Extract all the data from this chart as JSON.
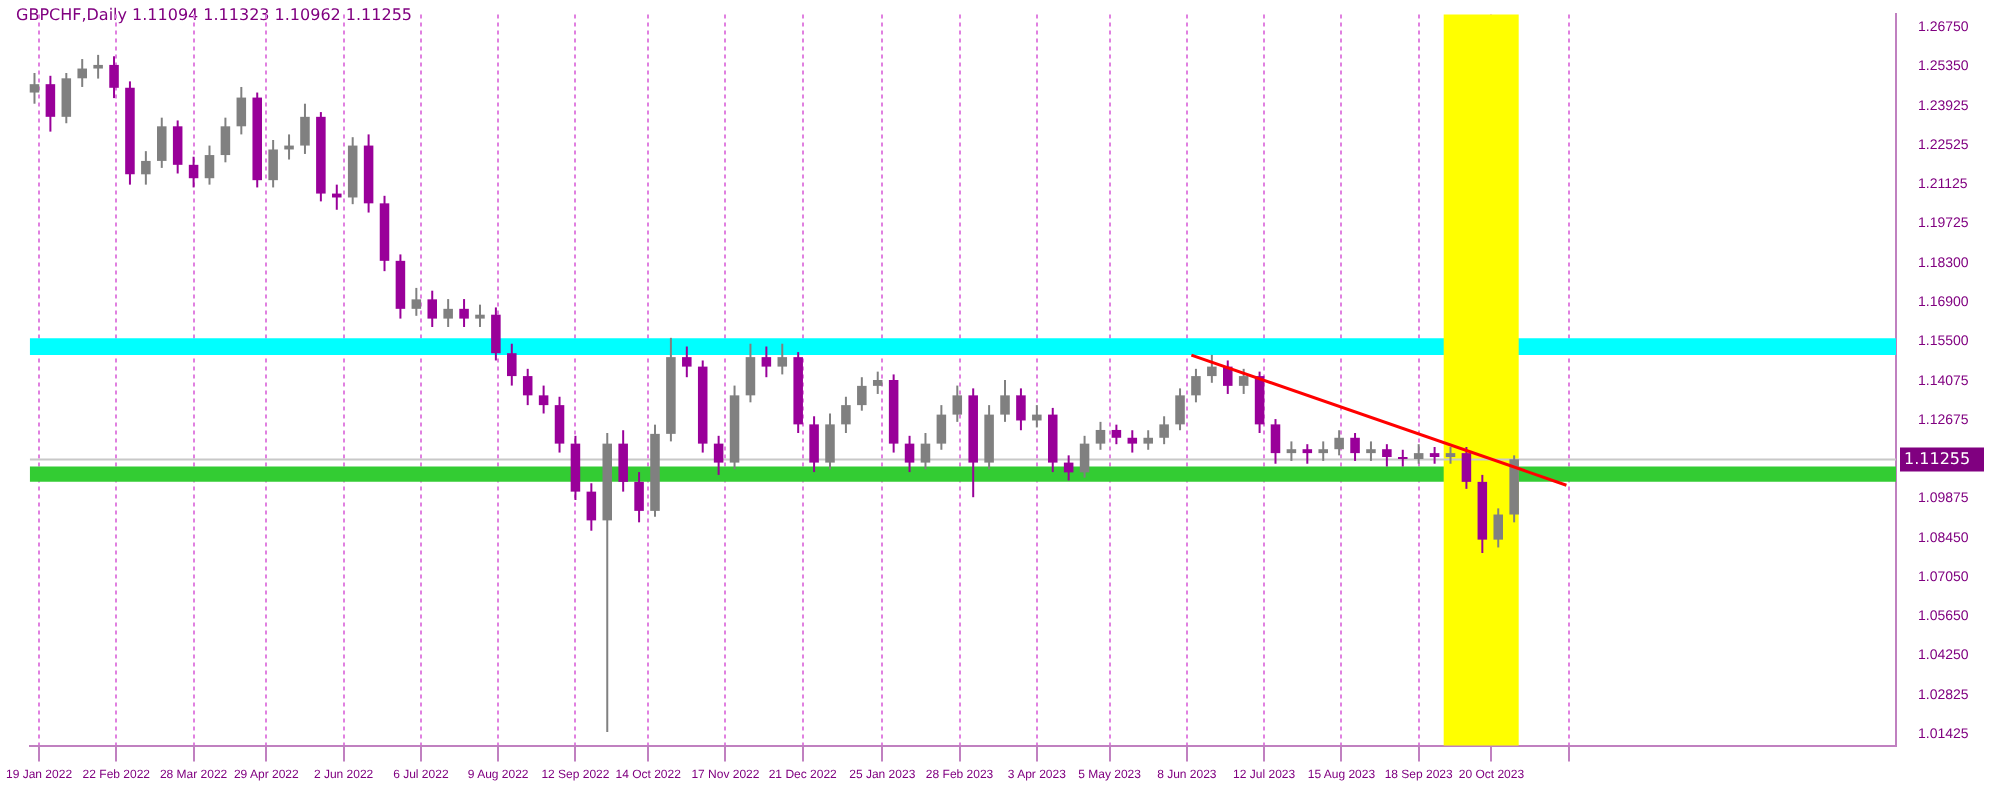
{
  "chart_data": {
    "type": "candlestick",
    "title": "GBPCHF,Daily  1.11094 1.11323 1.10962 1.11255",
    "x": [
      "2022-01-17",
      "2022-01-24",
      "2022-01-31",
      "2022-02-07",
      "2022-02-14",
      "2022-02-21",
      "2022-02-28",
      "2022-03-07",
      "2022-03-14",
      "2022-03-21",
      "2022-03-28",
      "2022-04-04",
      "2022-04-11",
      "2022-04-18",
      "2022-04-25",
      "2022-05-02",
      "2022-05-09",
      "2022-05-16",
      "2022-05-23",
      "2022-05-30",
      "2022-06-06",
      "2022-06-13",
      "2022-06-20",
      "2022-06-27",
      "2022-07-04",
      "2022-07-11",
      "2022-07-18",
      "2022-07-25",
      "2022-08-01",
      "2022-08-08",
      "2022-08-15",
      "2022-08-22",
      "2022-08-29",
      "2022-09-05",
      "2022-09-12",
      "2022-09-19",
      "2022-09-26",
      "2022-10-03",
      "2022-10-10",
      "2022-10-17",
      "2022-10-24",
      "2022-10-31",
      "2022-11-07",
      "2022-11-14",
      "2022-11-21",
      "2022-11-28",
      "2022-12-05",
      "2022-12-12",
      "2022-12-19",
      "2022-12-26",
      "2023-01-02",
      "2023-01-09",
      "2023-01-16",
      "2023-01-23",
      "2023-01-30",
      "2023-02-06",
      "2023-02-13",
      "2023-02-20",
      "2023-02-27",
      "2023-03-06",
      "2023-03-13",
      "2023-03-20",
      "2023-03-27",
      "2023-04-03",
      "2023-04-10",
      "2023-04-17",
      "2023-04-24",
      "2023-05-01",
      "2023-05-08",
      "2023-05-15",
      "2023-05-22",
      "2023-05-29",
      "2023-06-05",
      "2023-06-12",
      "2023-06-19",
      "2023-06-26",
      "2023-07-03",
      "2023-07-10",
      "2023-07-17",
      "2023-07-24",
      "2023-07-31",
      "2023-08-07",
      "2023-08-14",
      "2023-08-21",
      "2023-08-28",
      "2023-09-04",
      "2023-09-11",
      "2023-09-18",
      "2023-09-25",
      "2023-10-02",
      "2023-10-09",
      "2023-10-16",
      "2023-10-23",
      "2023-10-30"
    ],
    "ohlc": [
      [
        1.244,
        1.251,
        1.24,
        1.247
      ],
      [
        1.247,
        1.25,
        1.23,
        1.2353
      ],
      [
        1.2353,
        1.251,
        1.233,
        1.2491
      ],
      [
        1.2491,
        1.256,
        1.246,
        1.2526
      ],
      [
        1.2526,
        1.2575,
        1.249,
        1.2539
      ],
      [
        1.2539,
        1.257,
        1.242,
        1.2457
      ],
      [
        1.2457,
        1.248,
        1.211,
        1.2147
      ],
      [
        1.2147,
        1.223,
        1.211,
        1.2195
      ],
      [
        1.2195,
        1.235,
        1.217,
        1.2319
      ],
      [
        1.2319,
        1.234,
        1.215,
        1.2181
      ],
      [
        1.2181,
        1.221,
        1.21,
        1.2133
      ],
      [
        1.2133,
        1.225,
        1.211,
        1.2216
      ],
      [
        1.2216,
        1.235,
        1.219,
        1.2319
      ],
      [
        1.2319,
        1.246,
        1.229,
        1.2422
      ],
      [
        1.2422,
        1.244,
        1.21,
        1.2126
      ],
      [
        1.2126,
        1.227,
        1.21,
        1.2236
      ],
      [
        1.2236,
        1.229,
        1.22,
        1.225
      ],
      [
        1.225,
        1.24,
        1.222,
        1.2353
      ],
      [
        1.2353,
        1.237,
        1.205,
        1.2078
      ],
      [
        1.2078,
        1.211,
        1.202,
        1.2064
      ],
      [
        1.2064,
        1.228,
        1.204,
        1.225
      ],
      [
        1.225,
        1.229,
        1.201,
        1.2043
      ],
      [
        1.2043,
        1.207,
        1.18,
        1.1837
      ],
      [
        1.1837,
        1.186,
        1.163,
        1.1665
      ],
      [
        1.1665,
        1.174,
        1.164,
        1.1699
      ],
      [
        1.1699,
        1.173,
        1.16,
        1.163
      ],
      [
        1.163,
        1.17,
        1.16,
        1.1665
      ],
      [
        1.1665,
        1.17,
        1.16,
        1.163
      ],
      [
        1.163,
        1.168,
        1.16,
        1.1644
      ],
      [
        1.1644,
        1.167,
        1.148,
        1.1506
      ],
      [
        1.1506,
        1.154,
        1.139,
        1.1424
      ],
      [
        1.1424,
        1.145,
        1.132,
        1.1355
      ],
      [
        1.1355,
        1.139,
        1.129,
        1.132
      ],
      [
        1.132,
        1.135,
        1.115,
        1.1182
      ],
      [
        1.1182,
        1.121,
        1.098,
        1.101
      ],
      [
        1.101,
        1.104,
        1.087,
        1.0907
      ],
      [
        1.0907,
        1.122,
        1.0149,
        1.1182
      ],
      [
        1.1182,
        1.123,
        1.101,
        1.1045
      ],
      [
        1.1045,
        1.108,
        1.09,
        1.0941
      ],
      [
        1.0941,
        1.125,
        1.092,
        1.1217
      ],
      [
        1.1217,
        1.1561,
        1.119,
        1.1492
      ],
      [
        1.1492,
        1.153,
        1.142,
        1.1458
      ],
      [
        1.1458,
        1.148,
        1.115,
        1.1182
      ],
      [
        1.1182,
        1.121,
        1.107,
        1.1114
      ],
      [
        1.1114,
        1.139,
        1.109,
        1.1355
      ],
      [
        1.1355,
        1.154,
        1.133,
        1.1492
      ],
      [
        1.1492,
        1.153,
        1.142,
        1.1458
      ],
      [
        1.1458,
        1.154,
        1.143,
        1.1492
      ],
      [
        1.1492,
        1.151,
        1.122,
        1.1251
      ],
      [
        1.1251,
        1.128,
        1.108,
        1.1114
      ],
      [
        1.1114,
        1.129,
        1.109,
        1.1251
      ],
      [
        1.1251,
        1.135,
        1.122,
        1.132
      ],
      [
        1.132,
        1.142,
        1.13,
        1.1389
      ],
      [
        1.1389,
        1.144,
        1.136,
        1.141
      ],
      [
        1.141,
        1.143,
        1.115,
        1.1182
      ],
      [
        1.1182,
        1.121,
        1.108,
        1.1114
      ],
      [
        1.1114,
        1.122,
        1.109,
        1.1182
      ],
      [
        1.1182,
        1.132,
        1.116,
        1.1286
      ],
      [
        1.1286,
        1.139,
        1.126,
        1.1355
      ],
      [
        1.1355,
        1.138,
        1.099,
        1.1114
      ],
      [
        1.1114,
        1.132,
        1.109,
        1.1286
      ],
      [
        1.1286,
        1.141,
        1.126,
        1.1355
      ],
      [
        1.1355,
        1.138,
        1.123,
        1.1265
      ],
      [
        1.1265,
        1.132,
        1.124,
        1.1286
      ],
      [
        1.1286,
        1.131,
        1.108,
        1.1114
      ],
      [
        1.1114,
        1.114,
        1.105,
        1.1079
      ],
      [
        1.1079,
        1.121,
        1.106,
        1.1182
      ],
      [
        1.1182,
        1.126,
        1.116,
        1.1231
      ],
      [
        1.1231,
        1.125,
        1.118,
        1.1203
      ],
      [
        1.1203,
        1.123,
        1.115,
        1.1182
      ],
      [
        1.1182,
        1.123,
        1.116,
        1.1203
      ],
      [
        1.1203,
        1.128,
        1.118,
        1.1251
      ],
      [
        1.1251,
        1.138,
        1.123,
        1.1355
      ],
      [
        1.1355,
        1.145,
        1.133,
        1.1424
      ],
      [
        1.1424,
        1.15,
        1.14,
        1.1458
      ],
      [
        1.1458,
        1.148,
        1.136,
        1.1389
      ],
      [
        1.1389,
        1.145,
        1.136,
        1.1424
      ],
      [
        1.1424,
        1.144,
        1.122,
        1.1251
      ],
      [
        1.1251,
        1.127,
        1.111,
        1.1148
      ],
      [
        1.1148,
        1.119,
        1.112,
        1.1162
      ],
      [
        1.1162,
        1.118,
        1.111,
        1.1148
      ],
      [
        1.1148,
        1.119,
        1.112,
        1.1162
      ],
      [
        1.1162,
        1.123,
        1.114,
        1.1203
      ],
      [
        1.1203,
        1.122,
        1.112,
        1.1148
      ],
      [
        1.1148,
        1.119,
        1.112,
        1.1162
      ],
      [
        1.1162,
        1.118,
        1.11,
        1.1134
      ],
      [
        1.1134,
        1.116,
        1.11,
        1.1127
      ],
      [
        1.1127,
        1.118,
        1.111,
        1.1148
      ],
      [
        1.1148,
        1.117,
        1.111,
        1.1134
      ],
      [
        1.1134,
        1.117,
        1.111,
        1.1148
      ],
      [
        1.1148,
        1.117,
        1.102,
        1.1045
      ],
      [
        1.1045,
        1.107,
        1.079,
        1.0838
      ],
      [
        1.0838,
        1.095,
        1.081,
        1.0928
      ],
      [
        1.0928,
        1.114,
        1.09,
        1.1126
      ]
    ],
    "colors": [
      "#808080",
      "#990099",
      "#808080",
      "#808080",
      "#808080",
      "#990099",
      "#990099",
      "#808080",
      "#808080",
      "#990099",
      "#990099",
      "#808080",
      "#808080",
      "#808080",
      "#990099",
      "#808080",
      "#808080",
      "#808080",
      "#990099",
      "#990099",
      "#808080",
      "#990099",
      "#990099",
      "#990099",
      "#808080",
      "#990099",
      "#808080",
      "#990099",
      "#808080",
      "#990099",
      "#990099",
      "#990099",
      "#990099",
      "#990099",
      "#990099",
      "#990099",
      "#808080",
      "#990099",
      "#990099",
      "#808080",
      "#808080",
      "#990099",
      "#990099",
      "#990099",
      "#808080",
      "#808080",
      "#990099",
      "#808080",
      "#990099",
      "#990099",
      "#808080",
      "#808080",
      "#808080",
      "#808080",
      "#990099",
      "#990099",
      "#808080",
      "#808080",
      "#808080",
      "#990099",
      "#808080",
      "#808080",
      "#990099",
      "#808080",
      "#990099",
      "#990099",
      "#808080",
      "#808080",
      "#990099",
      "#990099",
      "#808080",
      "#808080",
      "#808080",
      "#808080",
      "#808080",
      "#990099",
      "#808080",
      "#990099",
      "#990099",
      "#808080",
      "#990099",
      "#808080",
      "#808080",
      "#990099",
      "#808080",
      "#990099",
      "#990099",
      "#808080",
      "#990099",
      "#808080",
      "#990099",
      "#990099",
      "#808080",
      "#808080"
    ],
    "series": [
      {
        "type": "line",
        "color": "#ff0000",
        "x": [
          "2023-06-10",
          "2023-11-22"
        ],
        "values": [
          1.1499,
          1.1033
        ]
      }
    ],
    "xlim": [
      "2022-01-15",
      "2024-04-15"
    ],
    "xticks": [
      {
        "value": "2022-01-19",
        "label": "19 Jan 2022"
      },
      {
        "value": "2022-02-22",
        "label": "22 Feb 2022"
      },
      {
        "value": "2022-03-28",
        "label": "28 Mar 2022"
      },
      {
        "value": "2022-04-29",
        "label": "29 Apr 2022"
      },
      {
        "value": "2022-06-02",
        "label": "2 Jun 2022"
      },
      {
        "value": "2022-07-06",
        "label": "6 Jul 2022"
      },
      {
        "value": "2022-08-09",
        "label": "9 Aug 2022"
      },
      {
        "value": "2022-09-12",
        "label": "12 Sep 2022"
      },
      {
        "value": "2022-10-14",
        "label": "14 Oct 2022"
      },
      {
        "value": "2022-11-17",
        "label": "17 Nov 2022"
      },
      {
        "value": "2022-12-21",
        "label": "21 Dec 2022"
      },
      {
        "value": "2023-01-25",
        "label": "25 Jan 2023"
      },
      {
        "value": "2023-02-28",
        "label": "28 Feb 2023"
      },
      {
        "value": "2023-04-03",
        "label": "3 Apr 2023"
      },
      {
        "value": "2023-05-05",
        "label": "5 May 2023"
      },
      {
        "value": "2023-06-08",
        "label": "8 Jun 2023"
      },
      {
        "value": "2023-07-12",
        "label": "12 Jul 2023"
      },
      {
        "value": "2023-08-15",
        "label": "15 Aug 2023"
      },
      {
        "value": "2023-09-18",
        "label": "18 Sep 2023"
      },
      {
        "value": "2023-10-20",
        "label": "20 Oct 2023"
      },
      {
        "value": "2023-11-23",
        "label": null
      }
    ],
    "ylim": [
      1.01,
      1.272
    ],
    "yticks": [
      {
        "value": 1.2675,
        "label": "1.26750"
      },
      {
        "value": 1.2535,
        "label": "1.25350"
      },
      {
        "value": 1.23925,
        "label": "1.23925"
      },
      {
        "value": 1.22525,
        "label": "1.22525"
      },
      {
        "value": 1.21125,
        "label": "1.21125"
      },
      {
        "value": 1.19725,
        "label": "1.19725"
      },
      {
        "value": 1.183,
        "label": "1.18300"
      },
      {
        "value": 1.169,
        "label": "1.16900"
      },
      {
        "value": 1.155,
        "label": "1.15500"
      },
      {
        "value": 1.14075,
        "label": "1.14075"
      },
      {
        "value": 1.12675,
        "label": "1.12675"
      },
      {
        "value": 1.09875,
        "label": "1.09875"
      },
      {
        "value": 1.0845,
        "label": "1.08450"
      },
      {
        "value": 1.0705,
        "label": "1.07050"
      },
      {
        "value": 1.0565,
        "label": "1.05650"
      },
      {
        "value": 1.0425,
        "label": "1.04250"
      },
      {
        "value": 1.02825,
        "label": "1.02825"
      },
      {
        "value": 1.01425,
        "label": "1.01425"
      }
    ],
    "ref_lines": [
      {
        "axis": "y",
        "value": 1.11255,
        "label": "1.11255",
        "color": "#c8c8c8"
      }
    ],
    "bands": [
      {
        "axis": "y",
        "from": 1.15,
        "to": 1.156,
        "color": "#00ffff"
      },
      {
        "axis": "y",
        "from": 1.1045,
        "to": 1.11,
        "color": "#33cc33"
      },
      {
        "axis": "x",
        "from": "2023-09-29",
        "to": "2023-11-01",
        "color": "#ffff00"
      }
    ],
    "grid": "x",
    "legend": false
  }
}
